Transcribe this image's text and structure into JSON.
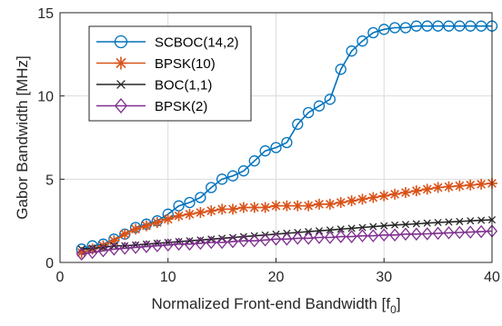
{
  "chart_data": {
    "type": "line",
    "title": "",
    "xlabel": "Normalized Front-end Bandwidth [f",
    "xlabel_sub": "0",
    "xlabel_end": "]",
    "ylabel": "Gabor Bandwidth [MHz]",
    "xlim": [
      0,
      40
    ],
    "ylim": [
      0,
      15
    ],
    "xticks": [
      0,
      10,
      20,
      30,
      40
    ],
    "yticks": [
      0,
      5,
      10,
      15
    ],
    "grid": true,
    "legend_position": "top-left",
    "x": [
      2,
      3,
      4,
      5,
      6,
      7,
      8,
      9,
      10,
      11,
      12,
      13,
      14,
      15,
      16,
      17,
      18,
      19,
      20,
      21,
      22,
      23,
      24,
      25,
      26,
      27,
      28,
      29,
      30,
      31,
      32,
      33,
      34,
      35,
      36,
      37,
      38,
      39,
      40
    ],
    "series": [
      {
        "name": "SCBOC(14,2)",
        "color": "#0072BD",
        "marker": "circle",
        "values": [
          0.8,
          1.0,
          1.1,
          1.4,
          1.7,
          2.1,
          2.3,
          2.5,
          2.9,
          3.4,
          3.6,
          3.9,
          4.5,
          5.0,
          5.2,
          5.5,
          6.1,
          6.7,
          6.9,
          7.2,
          8.3,
          9.0,
          9.4,
          9.8,
          11.6,
          12.7,
          13.3,
          13.8,
          14.0,
          14.1,
          14.1,
          14.2,
          14.2,
          14.2,
          14.2,
          14.2,
          14.2,
          14.2,
          14.2
        ]
      },
      {
        "name": "BPSK(10)",
        "color": "#D95319",
        "marker": "asterisk",
        "values": [
          0.6,
          0.8,
          1.0,
          1.3,
          1.7,
          2.0,
          2.2,
          2.4,
          2.6,
          2.8,
          2.9,
          3.0,
          3.1,
          3.2,
          3.2,
          3.3,
          3.3,
          3.3,
          3.4,
          3.4,
          3.4,
          3.4,
          3.5,
          3.5,
          3.6,
          3.7,
          3.8,
          3.9,
          4.0,
          4.1,
          4.2,
          4.3,
          4.4,
          4.5,
          4.55,
          4.6,
          4.65,
          4.7,
          4.75
        ]
      },
      {
        "name": "BOC(1,1)",
        "color": "#262626",
        "marker": "x",
        "values": [
          0.8,
          0.85,
          0.9,
          1.0,
          1.0,
          1.05,
          1.1,
          1.15,
          1.2,
          1.25,
          1.3,
          1.35,
          1.4,
          1.45,
          1.5,
          1.55,
          1.6,
          1.65,
          1.7,
          1.75,
          1.8,
          1.85,
          1.9,
          1.95,
          2.0,
          2.05,
          2.1,
          2.15,
          2.2,
          2.25,
          2.28,
          2.32,
          2.36,
          2.4,
          2.43,
          2.46,
          2.5,
          2.53,
          2.56
        ]
      },
      {
        "name": "BPSK(2)",
        "color": "#7E2F8E",
        "marker": "diamond",
        "values": [
          0.5,
          0.6,
          0.7,
          0.8,
          0.85,
          0.9,
          0.95,
          1.0,
          1.05,
          1.1,
          1.1,
          1.15,
          1.2,
          1.2,
          1.25,
          1.3,
          1.3,
          1.35,
          1.4,
          1.4,
          1.45,
          1.45,
          1.5,
          1.5,
          1.55,
          1.55,
          1.6,
          1.6,
          1.65,
          1.65,
          1.7,
          1.7,
          1.72,
          1.75,
          1.78,
          1.8,
          1.82,
          1.85,
          1.88
        ]
      }
    ]
  }
}
